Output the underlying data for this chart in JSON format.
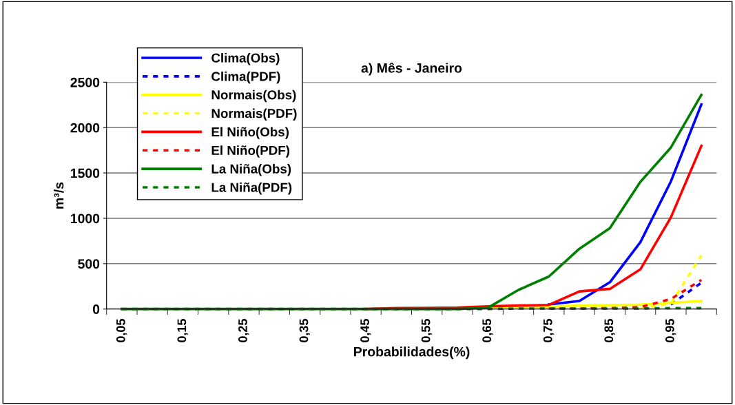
{
  "chart_data": {
    "type": "line",
    "title": "a) Mês - Janeiro",
    "xlabel": "Probabilidades(%)",
    "ylabel": "m³/s",
    "categories": [
      "0,05",
      null,
      "0,15",
      null,
      "0,25",
      null,
      "0,35",
      null,
      "0,45",
      null,
      "0,55",
      null,
      "0,65",
      null,
      "0,75",
      null,
      "0,85",
      null,
      "0,95",
      null
    ],
    "series": [
      {
        "name": "Clima(Obs)",
        "color": "#0000ff",
        "line_style": "solid",
        "values": [
          null,
          null,
          null,
          null,
          null,
          null,
          null,
          null,
          null,
          null,
          null,
          null,
          null,
          null,
          50,
          88,
          295,
          737,
          1406,
          2255
        ]
      },
      {
        "name": "Clima(PDF)",
        "color": "#0000ff",
        "line_style": "dashed",
        "values": [
          null,
          null,
          null,
          null,
          null,
          null,
          null,
          null,
          null,
          null,
          null,
          null,
          null,
          null,
          null,
          null,
          null,
          null,
          50,
          290
        ]
      },
      {
        "name": "Normais(Obs)",
        "color": "#ffff00",
        "line_style": "solid",
        "values": [
          null,
          null,
          null,
          null,
          null,
          null,
          null,
          null,
          null,
          null,
          null,
          null,
          5,
          15,
          25,
          38,
          43,
          48,
          68,
          88
        ]
      },
      {
        "name": "Normais(PDF)",
        "color": "#ffff00",
        "line_style": "dashed",
        "values": [
          null,
          null,
          null,
          null,
          null,
          null,
          null,
          null,
          null,
          null,
          null,
          null,
          null,
          null,
          null,
          null,
          null,
          10,
          60,
          590
        ]
      },
      {
        "name": "El Niño(Obs)",
        "color": "#ff0000",
        "line_style": "solid",
        "values": [
          null,
          null,
          null,
          null,
          null,
          null,
          null,
          null,
          0,
          10,
          12,
          15,
          30,
          38,
          45,
          194,
          222,
          437,
          1010,
          1798
        ]
      },
      {
        "name": "El Niño(PDF)",
        "color": "#ff0000",
        "line_style": "dashed",
        "values": [
          null,
          null,
          null,
          null,
          null,
          null,
          null,
          null,
          null,
          null,
          null,
          null,
          null,
          null,
          5,
          5,
          10,
          20,
          110,
          320
        ]
      },
      {
        "name": "La Niña(Obs)",
        "color": "#008000",
        "line_style": "solid",
        "values": [
          0,
          0,
          0,
          0,
          0,
          0,
          0,
          0,
          0,
          0,
          0,
          0,
          13,
          210,
          358,
          664,
          891,
          1401,
          1780,
          2361
        ]
      },
      {
        "name": "La Niña(PDF)",
        "color": "#008000",
        "line_style": "dashed",
        "values": [
          0,
          0,
          0,
          0,
          0,
          0,
          0,
          0,
          0,
          0,
          0,
          0,
          0,
          5,
          5,
          5,
          5,
          5,
          10,
          10
        ]
      }
    ],
    "ylim": [
      0,
      2500
    ],
    "yticks": [
      0,
      500,
      1000,
      1500,
      2000,
      2500
    ],
    "grid": "y",
    "legend": "top left",
    "marker": "none"
  }
}
